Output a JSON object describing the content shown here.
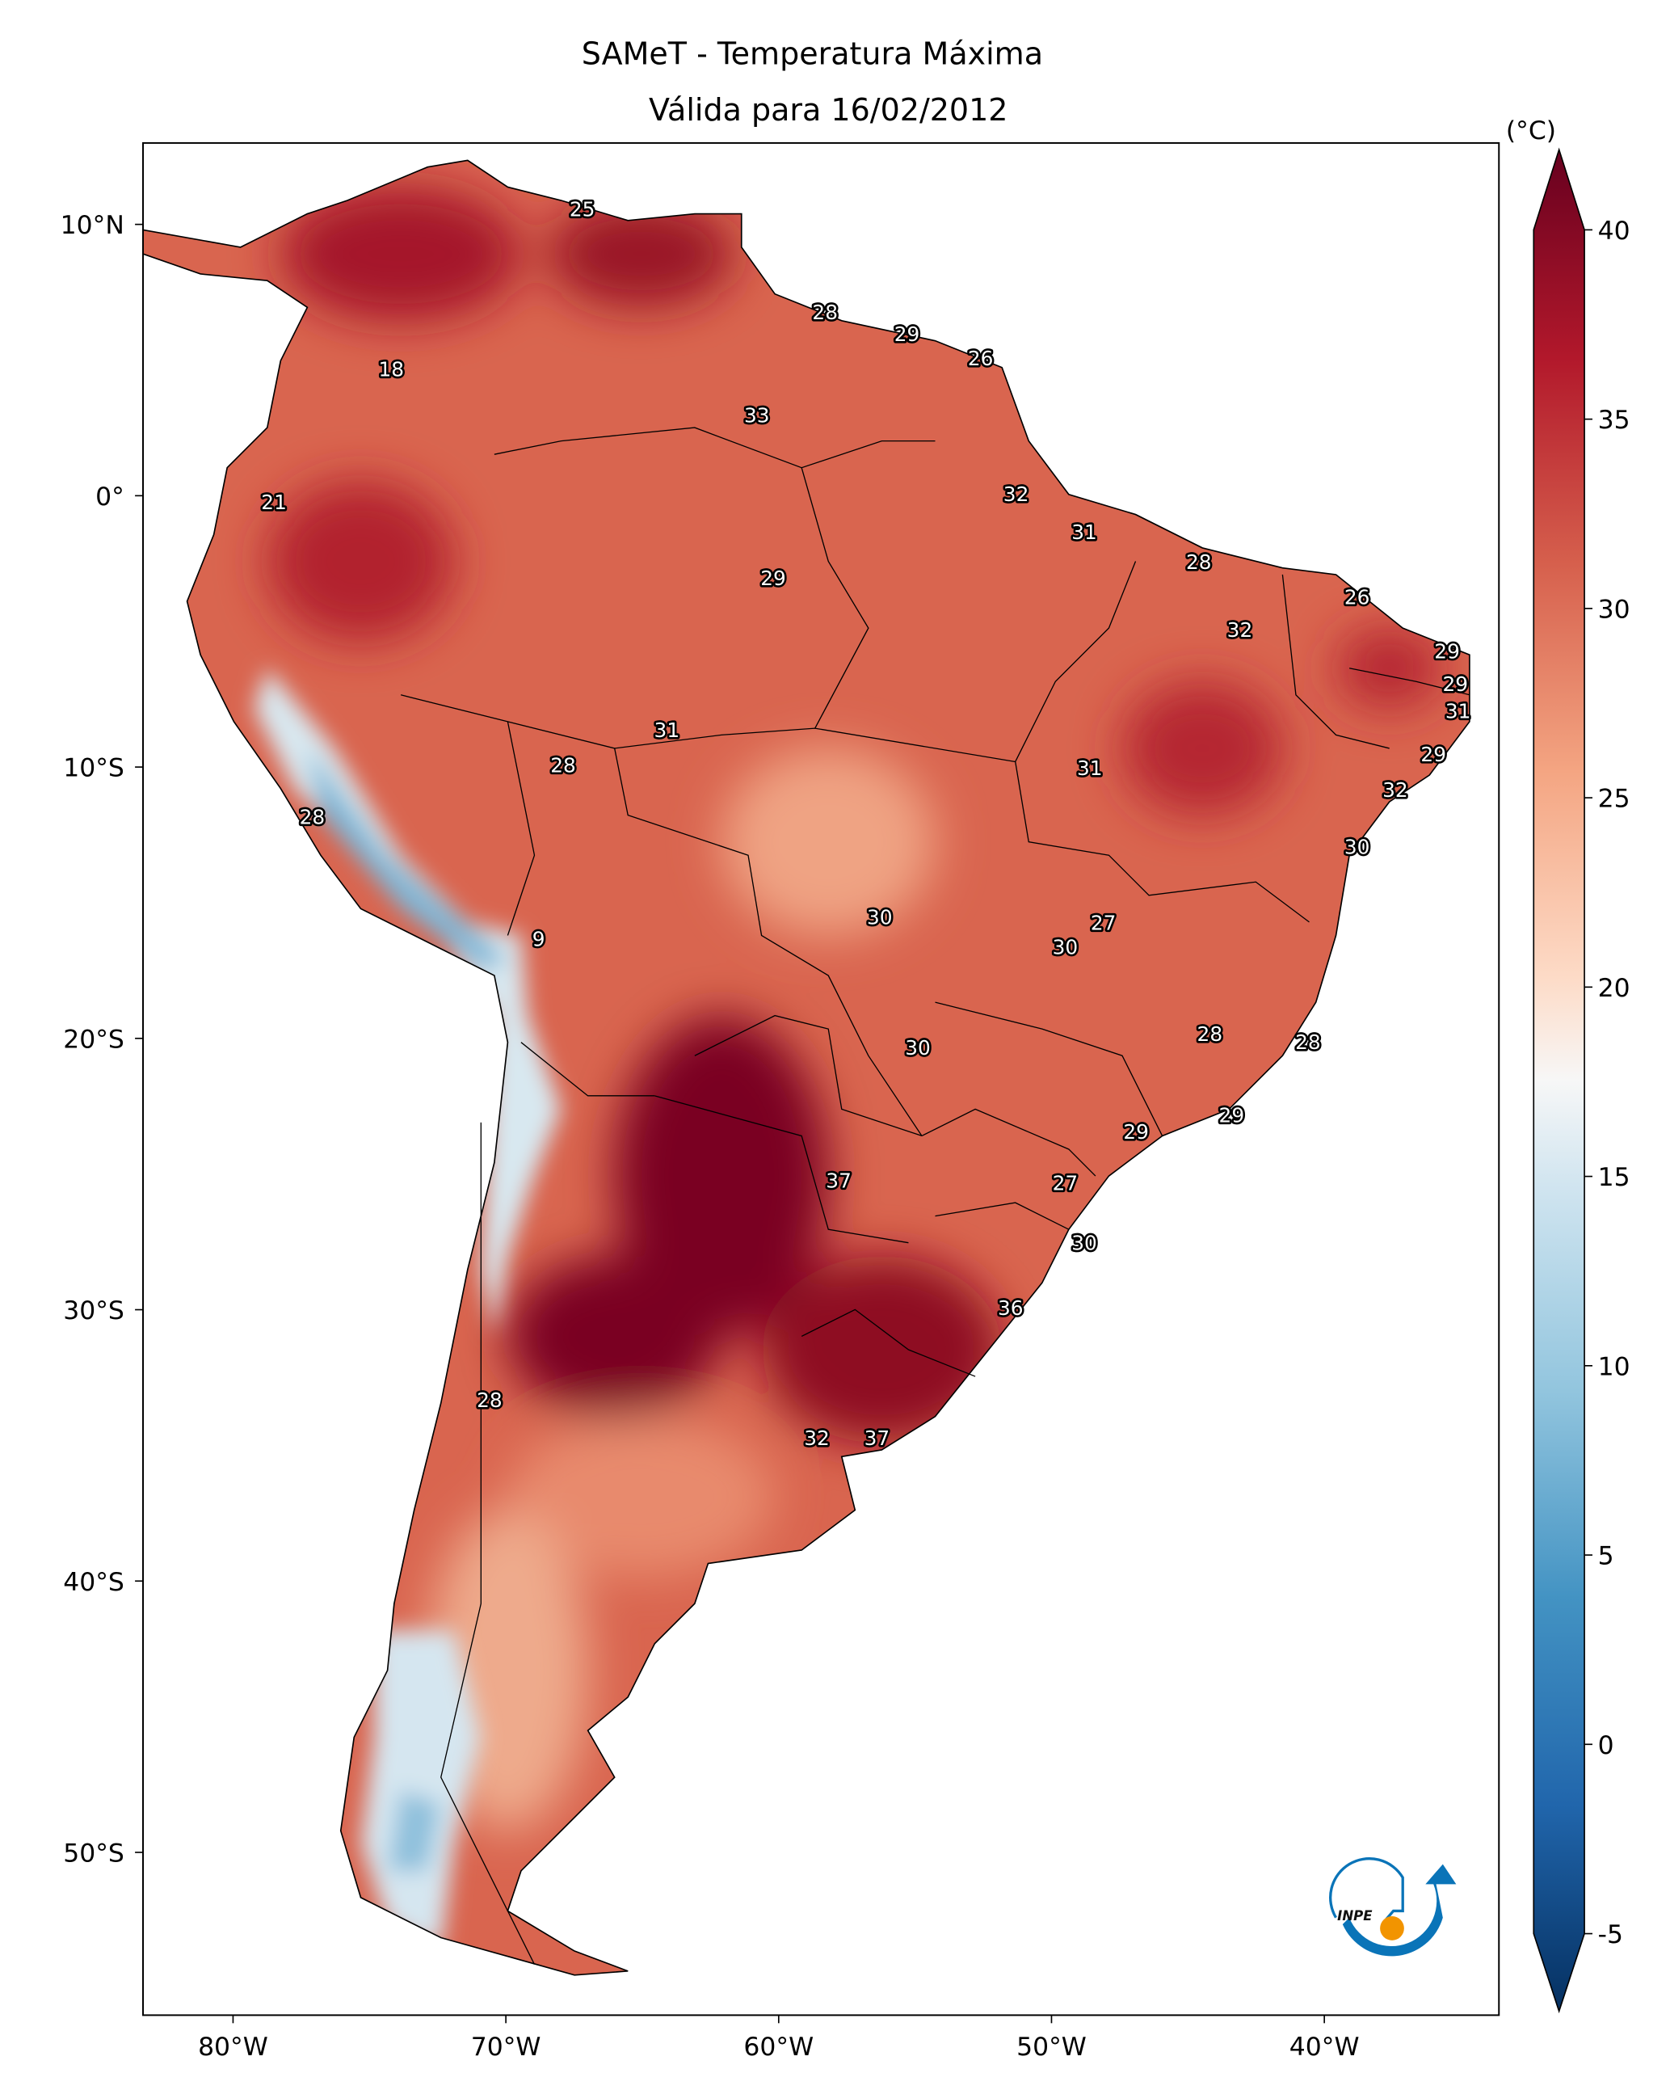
{
  "chart_data": {
    "type": "heatmap",
    "title": "SAMeT - Temperatura Máxima",
    "subtitle": "Válida para 16/02/2012",
    "colorbar": {
      "label": "(°C)",
      "range": [
        -5,
        40
      ],
      "ticks": [
        -5,
        0,
        5,
        10,
        15,
        20,
        25,
        30,
        35,
        40
      ],
      "tick_labels": [
        "-5",
        "0",
        "5",
        "10",
        "15",
        "20",
        "25",
        "30",
        "35",
        "40"
      ],
      "extend": "both",
      "colormap": "RdBu_r"
    },
    "xlim": [
      -83.3,
      -33.6
    ],
    "ylim": [
      -56,
      13
    ],
    "x_ticks": [
      -80,
      -70,
      -60,
      -50,
      -40
    ],
    "x_tick_labels": [
      "80°W",
      "70°W",
      "60°W",
      "50°W",
      "40°W"
    ],
    "y_ticks": [
      10,
      0,
      -10,
      -20,
      -30,
      -40,
      -50
    ],
    "y_tick_labels": [
      "10°N",
      "0°",
      "10°S",
      "20°S",
      "30°S",
      "40°S",
      "50°S"
    ],
    "station_labels": [
      {
        "text": "25",
        "lon": -67.2,
        "lat": 10.6
      },
      {
        "text": "28",
        "lon": -58.3,
        "lat": 6.8
      },
      {
        "text": "29",
        "lon": -55.3,
        "lat": 6.0
      },
      {
        "text": "26",
        "lon": -52.6,
        "lat": 5.1
      },
      {
        "text": "18",
        "lon": -74.2,
        "lat": 4.7
      },
      {
        "text": "33",
        "lon": -60.8,
        "lat": 3.0
      },
      {
        "text": "21",
        "lon": -78.5,
        "lat": -0.2
      },
      {
        "text": "32",
        "lon": -51.3,
        "lat": 0.1
      },
      {
        "text": "31",
        "lon": -48.8,
        "lat": -1.3
      },
      {
        "text": "28",
        "lon": -44.6,
        "lat": -2.4
      },
      {
        "text": "29",
        "lon": -60.2,
        "lat": -3.0
      },
      {
        "text": "26",
        "lon": -38.8,
        "lat": -3.7
      },
      {
        "text": "32",
        "lon": -43.1,
        "lat": -4.9
      },
      {
        "text": "29",
        "lon": -35.5,
        "lat": -5.7
      },
      {
        "text": "29",
        "lon": -35.2,
        "lat": -6.9
      },
      {
        "text": "31",
        "lon": -35.1,
        "lat": -7.9
      },
      {
        "text": "31",
        "lon": -64.1,
        "lat": -8.6
      },
      {
        "text": "29",
        "lon": -36.0,
        "lat": -9.5
      },
      {
        "text": "28",
        "lon": -67.9,
        "lat": -9.9
      },
      {
        "text": "31",
        "lon": -48.6,
        "lat": -10.0
      },
      {
        "text": "32",
        "lon": -37.4,
        "lat": -10.8
      },
      {
        "text": "28",
        "lon": -77.1,
        "lat": -11.8
      },
      {
        "text": "30",
        "lon": -38.8,
        "lat": -12.9
      },
      {
        "text": "30",
        "lon": -56.3,
        "lat": -15.5
      },
      {
        "text": "27",
        "lon": -48.1,
        "lat": -15.7
      },
      {
        "text": "9",
        "lon": -68.8,
        "lat": -16.3
      },
      {
        "text": "30",
        "lon": -49.5,
        "lat": -16.6
      },
      {
        "text": "28",
        "lon": -44.2,
        "lat": -19.8
      },
      {
        "text": "30",
        "lon": -54.9,
        "lat": -20.3
      },
      {
        "text": "28",
        "lon": -40.6,
        "lat": -20.1
      },
      {
        "text": "29",
        "lon": -43.4,
        "lat": -22.8
      },
      {
        "text": "29",
        "lon": -46.9,
        "lat": -23.4
      },
      {
        "text": "37",
        "lon": -57.8,
        "lat": -25.2
      },
      {
        "text": "27",
        "lon": -49.5,
        "lat": -25.3
      },
      {
        "text": "30",
        "lon": -48.8,
        "lat": -27.5
      },
      {
        "text": "36",
        "lon": -51.5,
        "lat": -29.9
      },
      {
        "text": "28",
        "lon": -70.6,
        "lat": -33.3
      },
      {
        "text": "32",
        "lon": -58.6,
        "lat": -34.7
      },
      {
        "text": "37",
        "lon": -56.4,
        "lat": -34.7
      }
    ]
  },
  "logo": {
    "text": "INPE",
    "colors": {
      "blue": "#0a74b8",
      "orange": "#f29400"
    }
  }
}
